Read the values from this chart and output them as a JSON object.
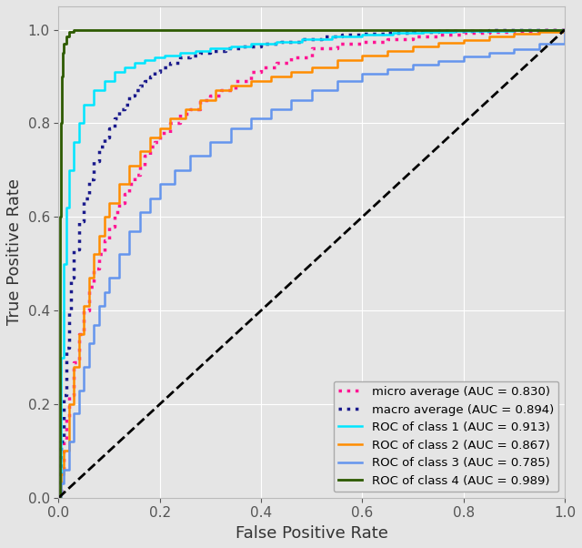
{
  "xlabel": "False Positive Rate",
  "ylabel": "True Positive Rate",
  "xlim": [
    0.0,
    1.0
  ],
  "ylim": [
    0.0,
    1.05
  ],
  "background_color": "#e5e5e5",
  "grid_color": "#ffffff",
  "legend_labels": [
    "micro average (AUC = 0.830)",
    "macro average (AUC = 0.894)",
    "ROC of class 1 (AUC = 0.913)",
    "ROC of class 2 (AUC = 0.867)",
    "ROC of class 3 (AUC = 0.785)",
    "ROC of class 4 (AUC = 0.989)"
  ],
  "micro_color": "#ff1493",
  "macro_color": "#1a1a8c",
  "class1_color": "#00e5ff",
  "class2_color": "#ff8c00",
  "class3_color": "#6495ed",
  "class4_color": "#2d5a00",
  "diag_line_color": "#000000",
  "figsize": [
    6.4,
    6.02
  ],
  "dpi": 100,
  "micro_fpr": [
    0.0,
    0.005,
    0.01,
    0.015,
    0.02,
    0.03,
    0.04,
    0.05,
    0.06,
    0.07,
    0.08,
    0.09,
    0.1,
    0.11,
    0.12,
    0.13,
    0.14,
    0.15,
    0.16,
    0.17,
    0.18,
    0.19,
    0.2,
    0.22,
    0.24,
    0.26,
    0.28,
    0.3,
    0.32,
    0.35,
    0.38,
    0.4,
    0.43,
    0.46,
    0.5,
    0.55,
    0.6,
    0.65,
    0.7,
    0.75,
    0.8,
    0.85,
    0.9,
    0.95,
    1.0
  ],
  "micro_tpr": [
    0.0,
    0.06,
    0.12,
    0.17,
    0.22,
    0.29,
    0.35,
    0.4,
    0.45,
    0.49,
    0.52,
    0.55,
    0.58,
    0.61,
    0.63,
    0.65,
    0.67,
    0.69,
    0.71,
    0.73,
    0.75,
    0.76,
    0.78,
    0.8,
    0.82,
    0.83,
    0.85,
    0.86,
    0.87,
    0.89,
    0.91,
    0.92,
    0.93,
    0.94,
    0.96,
    0.97,
    0.975,
    0.98,
    0.985,
    0.99,
    0.993,
    0.996,
    0.998,
    0.999,
    1.0
  ],
  "macro_fpr": [
    0.0,
    0.005,
    0.01,
    0.015,
    0.02,
    0.025,
    0.03,
    0.04,
    0.05,
    0.06,
    0.07,
    0.08,
    0.09,
    0.1,
    0.11,
    0.12,
    0.13,
    0.14,
    0.15,
    0.16,
    0.17,
    0.18,
    0.19,
    0.2,
    0.22,
    0.24,
    0.26,
    0.28,
    0.3,
    0.33,
    0.36,
    0.4,
    0.44,
    0.48,
    0.52,
    0.56,
    0.6,
    0.65,
    0.7,
    0.75,
    0.8,
    0.85,
    0.9,
    0.95,
    1.0
  ],
  "macro_tpr": [
    0.0,
    0.12,
    0.22,
    0.32,
    0.4,
    0.47,
    0.53,
    0.59,
    0.64,
    0.68,
    0.72,
    0.75,
    0.77,
    0.79,
    0.81,
    0.83,
    0.84,
    0.86,
    0.87,
    0.88,
    0.89,
    0.9,
    0.91,
    0.92,
    0.93,
    0.94,
    0.945,
    0.95,
    0.955,
    0.96,
    0.965,
    0.97,
    0.975,
    0.98,
    0.985,
    0.99,
    0.992,
    0.994,
    0.996,
    0.997,
    0.998,
    0.999,
    0.999,
    1.0,
    1.0
  ],
  "class1_fpr": [
    0.0,
    0.005,
    0.01,
    0.015,
    0.02,
    0.03,
    0.04,
    0.05,
    0.07,
    0.09,
    0.11,
    0.13,
    0.15,
    0.17,
    0.19,
    0.21,
    0.24,
    0.27,
    0.3,
    0.34,
    0.38,
    0.43,
    0.48,
    0.54,
    0.6,
    0.66,
    0.72,
    0.78,
    0.84,
    0.9,
    0.95,
    1.0
  ],
  "class1_tpr": [
    0.0,
    0.3,
    0.5,
    0.62,
    0.7,
    0.76,
    0.8,
    0.84,
    0.87,
    0.89,
    0.91,
    0.92,
    0.93,
    0.935,
    0.94,
    0.945,
    0.95,
    0.955,
    0.96,
    0.965,
    0.97,
    0.975,
    0.98,
    0.985,
    0.99,
    0.993,
    0.995,
    0.997,
    0.998,
    0.999,
    1.0,
    1.0
  ],
  "class2_fpr": [
    0.0,
    0.005,
    0.01,
    0.02,
    0.03,
    0.04,
    0.05,
    0.06,
    0.07,
    0.08,
    0.09,
    0.1,
    0.12,
    0.14,
    0.16,
    0.18,
    0.2,
    0.22,
    0.25,
    0.28,
    0.31,
    0.34,
    0.38,
    0.42,
    0.46,
    0.5,
    0.55,
    0.6,
    0.65,
    0.7,
    0.75,
    0.8,
    0.85,
    0.9,
    0.95,
    1.0
  ],
  "class2_tpr": [
    0.0,
    0.05,
    0.1,
    0.2,
    0.28,
    0.35,
    0.41,
    0.47,
    0.52,
    0.56,
    0.6,
    0.63,
    0.67,
    0.71,
    0.74,
    0.77,
    0.79,
    0.81,
    0.83,
    0.85,
    0.87,
    0.88,
    0.89,
    0.9,
    0.91,
    0.92,
    0.935,
    0.945,
    0.955,
    0.965,
    0.972,
    0.978,
    0.985,
    0.991,
    0.996,
    1.0
  ],
  "class3_fpr": [
    0.0,
    0.005,
    0.01,
    0.02,
    0.03,
    0.04,
    0.05,
    0.06,
    0.07,
    0.08,
    0.09,
    0.1,
    0.12,
    0.14,
    0.16,
    0.18,
    0.2,
    0.23,
    0.26,
    0.3,
    0.34,
    0.38,
    0.42,
    0.46,
    0.5,
    0.55,
    0.6,
    0.65,
    0.7,
    0.75,
    0.8,
    0.85,
    0.9,
    0.95,
    1.0
  ],
  "class3_tpr": [
    0.0,
    0.03,
    0.06,
    0.12,
    0.18,
    0.23,
    0.28,
    0.33,
    0.37,
    0.41,
    0.44,
    0.47,
    0.52,
    0.57,
    0.61,
    0.64,
    0.67,
    0.7,
    0.73,
    0.76,
    0.79,
    0.81,
    0.83,
    0.85,
    0.87,
    0.89,
    0.905,
    0.916,
    0.925,
    0.934,
    0.942,
    0.95,
    0.958,
    0.97,
    1.0
  ],
  "class4_fpr": [
    0.0,
    0.002,
    0.004,
    0.006,
    0.008,
    0.01,
    0.015,
    0.02,
    0.03,
    0.05,
    0.08,
    0.12,
    0.2,
    0.3,
    0.4,
    0.5,
    0.6,
    0.7,
    0.8,
    0.9,
    1.0
  ],
  "class4_tpr": [
    0.0,
    0.6,
    0.8,
    0.9,
    0.95,
    0.97,
    0.985,
    0.995,
    1.0,
    1.0,
    1.0,
    1.0,
    1.0,
    1.0,
    1.0,
    1.0,
    1.0,
    1.0,
    1.0,
    1.0,
    1.0
  ]
}
